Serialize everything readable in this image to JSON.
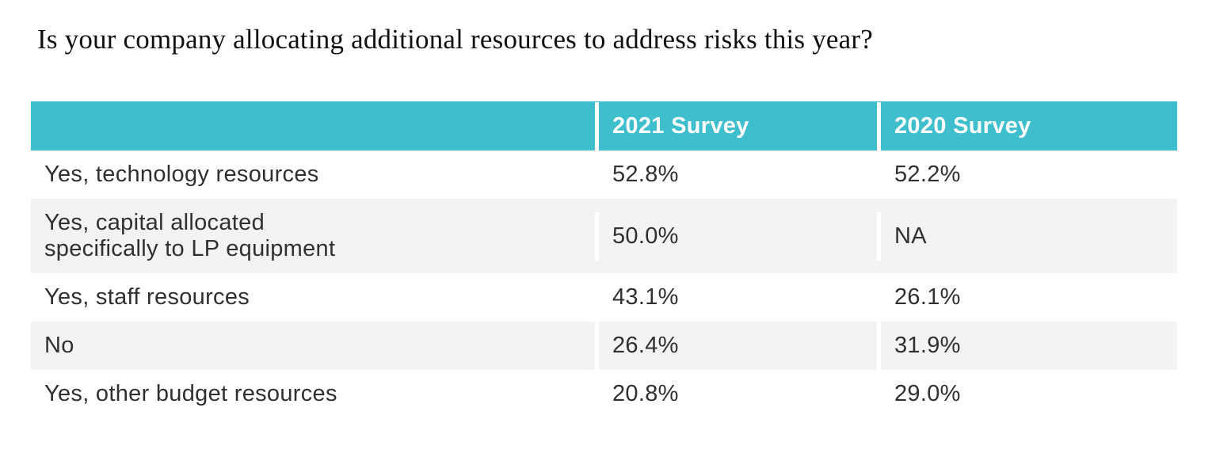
{
  "title": "Is your company allocating additional resources to address risks this year?",
  "colors": {
    "header_bg": "#3FBFCD",
    "header_text": "#FFFFFF",
    "row_alt_bg": "#F3F3F3",
    "row_bg": "#FFFFFF",
    "body_text": "#303030",
    "title_text": "#101010"
  },
  "chart_data": {
    "type": "table",
    "title": "Is your company allocating additional resources to address risks this year?",
    "columns": [
      "",
      "2021 Survey",
      "2020 Survey"
    ],
    "rows": [
      {
        "label": "Yes, technology resources",
        "survey_2021": "52.8%",
        "survey_2020": "52.2%"
      },
      {
        "label": "Yes, capital allocated specifically to LP equipment",
        "survey_2021": "50.0%",
        "survey_2020": "NA"
      },
      {
        "label": "Yes, staff resources",
        "survey_2021": "43.1%",
        "survey_2020": "26.1%"
      },
      {
        "label": "No",
        "survey_2021": "26.4%",
        "survey_2020": "31.9%"
      },
      {
        "label": "Yes, other budget resources",
        "survey_2021": "20.8%",
        "survey_2020": "29.0%"
      }
    ],
    "layout": {
      "header_style": "teal band with white bold column titles",
      "row_striping": "white / light-gray alternating",
      "grid": "white vertical gaps between columns, no horizontal rules"
    }
  }
}
